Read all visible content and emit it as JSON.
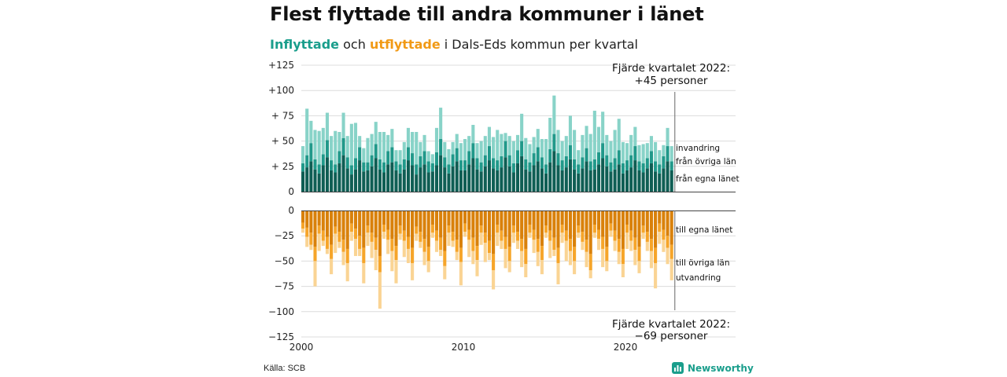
{
  "title": "Flest flyttade till andra kommuner i länet",
  "subtitle": {
    "part1": "Inflyttade",
    "part2": " och ",
    "part3": "utflyttade",
    "part4": " i Dals-Eds kommun per kvartal"
  },
  "source": "Källa: SCB",
  "brand": "Newsworthy",
  "colors": {
    "in_lan": "#0f5e54",
    "in_ovriga": "#21998a",
    "in_invandring": "#88d3c8",
    "out_lan": "#d9810b",
    "out_ovriga": "#f6a52a",
    "out_utvandring": "#fad494"
  },
  "chart_data": {
    "type": "bar",
    "stacked": true,
    "x": {
      "start_year": 2000,
      "quarters": 92,
      "ticks": [
        "2000",
        "2010",
        "2020"
      ]
    },
    "ylim": [
      -125,
      125
    ],
    "yticks": [
      "+125",
      "+100",
      "+ 75",
      "+ 50",
      "+ 25",
      "0",
      "0",
      "−25",
      "−50",
      "−75",
      "−100",
      "−125"
    ],
    "grid": true,
    "inflow_series": [
      {
        "name": "från egna länet",
        "values": [
          20,
          24,
          30,
          22,
          18,
          26,
          34,
          21,
          19,
          28,
          36,
          23,
          17,
          22,
          31,
          20,
          21,
          25,
          33,
          22,
          19,
          27,
          29,
          21,
          18,
          22,
          31,
          26,
          17,
          24,
          27,
          19,
          20,
          26,
          36,
          24,
          18,
          25,
          30,
          21,
          21,
          27,
          33,
          22,
          20,
          25,
          31,
          23,
          21,
          24,
          34,
          25,
          19,
          28,
          35,
          22,
          20,
          26,
          30,
          23,
          18,
          29,
          40,
          26,
          21,
          24,
          32,
          22,
          18,
          23,
          30,
          21,
          22,
          27,
          33,
          25,
          20,
          22,
          27,
          18,
          21,
          24,
          31,
          21,
          19,
          23,
          28,
          20,
          18,
          23,
          30,
          21
        ]
      },
      {
        "name": "från övriga län",
        "values": [
          8,
          12,
          18,
          10,
          9,
          11,
          17,
          10,
          8,
          12,
          17,
          11,
          9,
          11,
          13,
          9,
          8,
          11,
          14,
          10,
          10,
          13,
          15,
          9,
          9,
          10,
          13,
          12,
          10,
          11,
          13,
          11,
          8,
          13,
          16,
          10,
          9,
          12,
          13,
          10,
          10,
          13,
          15,
          11,
          9,
          11,
          14,
          10,
          10,
          11,
          16,
          11,
          9,
          13,
          15,
          10,
          9,
          12,
          14,
          11,
          9,
          13,
          17,
          12,
          10,
          11,
          14,
          10,
          9,
          11,
          13,
          9,
          10,
          12,
          15,
          11,
          9,
          11,
          14,
          10,
          10,
          12,
          14,
          9,
          9,
          10,
          12,
          10,
          9,
          12,
          15,
          9
        ]
      },
      {
        "name": "invandring",
        "values": [
          17,
          46,
          22,
          29,
          33,
          26,
          27,
          24,
          33,
          19,
          25,
          21,
          41,
          35,
          11,
          14,
          24,
          21,
          22,
          27,
          30,
          16,
          18,
          11,
          14,
          17,
          19,
          21,
          32,
          14,
          16,
          10,
          9,
          24,
          31,
          15,
          15,
          12,
          14,
          17,
          21,
          15,
          18,
          15,
          21,
          19,
          19,
          21,
          30,
          22,
          8,
          19,
          22,
          15,
          27,
          21,
          18,
          16,
          18,
          18,
          25,
          31,
          38,
          23,
          19,
          20,
          29,
          29,
          14,
          22,
          22,
          27,
          48,
          25,
          31,
          20,
          21,
          28,
          31,
          21,
          17,
          20,
          19,
          16,
          19,
          15,
          15,
          19,
          14,
          11,
          18,
          15
        ]
      }
    ],
    "outflow_series": [
      {
        "name": "till egna länet",
        "values": [
          -12,
          -17,
          -22,
          -36,
          -15,
          -20,
          -26,
          -34,
          -16,
          -21,
          -29,
          -38,
          -13,
          -18,
          -25,
          -37,
          -15,
          -22,
          -27,
          -45,
          -14,
          -19,
          -28,
          -35,
          -15,
          -20,
          -26,
          -37,
          -16,
          -21,
          -28,
          -36,
          -14,
          -20,
          -27,
          -40,
          -15,
          -21,
          -29,
          -37,
          -13,
          -19,
          -27,
          -35,
          -15,
          -22,
          -30,
          -43,
          -14,
          -20,
          -26,
          -36,
          -15,
          -21,
          -28,
          -38,
          -14,
          -19,
          -28,
          -35,
          -15,
          -20,
          -27,
          -37,
          -14,
          -20,
          -28,
          -36,
          -15,
          -21,
          -29,
          -43,
          -14,
          -19,
          -26,
          -36,
          -13,
          -20,
          -28,
          -38,
          -14,
          -20,
          -27,
          -36,
          -15,
          -21,
          -28,
          -37,
          -13,
          -19,
          -25,
          -34
        ]
      },
      {
        "name": "till övriga län",
        "values": [
          -6,
          -9,
          -12,
          -14,
          -8,
          -10,
          -12,
          -14,
          -7,
          -10,
          -12,
          -14,
          -8,
          -10,
          -13,
          -15,
          -7,
          -9,
          -12,
          -16,
          -7,
          -10,
          -12,
          -14,
          -8,
          -10,
          -12,
          -15,
          -7,
          -10,
          -13,
          -14,
          -8,
          -10,
          -12,
          -15,
          -7,
          -9,
          -12,
          -14,
          -8,
          -10,
          -13,
          -14,
          -7,
          -10,
          -12,
          -16,
          -8,
          -10,
          -12,
          -14,
          -7,
          -9,
          -12,
          -15,
          -8,
          -10,
          -13,
          -14,
          -7,
          -10,
          -12,
          -15,
          -8,
          -10,
          -12,
          -14,
          -7,
          -10,
          -12,
          -16,
          -8,
          -9,
          -12,
          -14,
          -7,
          -10,
          -13,
          -15,
          -8,
          -10,
          -12,
          -14,
          -7,
          -10,
          -12,
          -15,
          -8,
          -10,
          -12,
          -14
        ]
      },
      {
        "name": "utvandring",
        "values": [
          -4,
          -10,
          -5,
          -25,
          -17,
          -5,
          -5,
          -15,
          -19,
          -6,
          -13,
          -18,
          -9,
          -17,
          -7,
          -20,
          -13,
          -16,
          -20,
          -36,
          -7,
          -14,
          -20,
          -23,
          -6,
          -16,
          -14,
          -17,
          -7,
          -6,
          -13,
          -11,
          -5,
          -11,
          -6,
          -13,
          -13,
          -6,
          -8,
          -23,
          -5,
          -17,
          -13,
          -16,
          -12,
          -19,
          -7,
          -19,
          -13,
          -8,
          -19,
          -11,
          -10,
          -8,
          -16,
          -13,
          -5,
          -13,
          -14,
          -14,
          -5,
          -17,
          -6,
          -21,
          -10,
          -20,
          -14,
          -13,
          -5,
          -8,
          -15,
          -8,
          -5,
          -11,
          -18,
          -10,
          -6,
          -10,
          -12,
          -13,
          -16,
          -10,
          -15,
          -12,
          -6,
          -9,
          -17,
          -25,
          -12,
          -12,
          -16,
          -21
        ]
      }
    ],
    "inflow_labels": [
      "invandring",
      "från övriga län",
      "från egna länet"
    ],
    "outflow_labels": [
      "till egna länet",
      "till övriga län",
      "utvandring"
    ],
    "annotation_top": {
      "line1": "Fjärde kvartalet 2022:",
      "line2": "+45 personer"
    },
    "annotation_bottom": {
      "line1": "Fjärde kvartalet 2022:",
      "line2": "−69 personer"
    }
  }
}
